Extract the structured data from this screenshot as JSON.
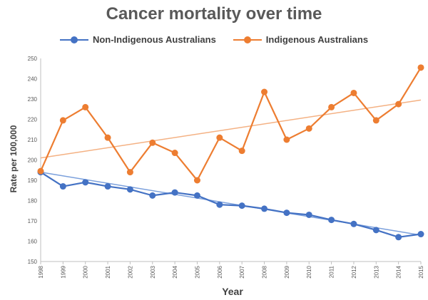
{
  "chart_data": {
    "type": "line",
    "title": "Cancer mortality over time",
    "xlabel": "Year",
    "ylabel": "Rate per 100,000",
    "x": [
      "1998",
      "1999",
      "2000",
      "2001",
      "2002",
      "2003",
      "2004",
      "2005",
      "2006",
      "2007",
      "2008",
      "2009",
      "2010",
      "2011",
      "2012",
      "2013",
      "2014",
      "2015"
    ],
    "ylim": [
      150,
      250
    ],
    "yticks": [
      "150",
      "160",
      "170",
      "180",
      "190",
      "200",
      "210",
      "220",
      "230",
      "240",
      "250"
    ],
    "grid": false,
    "legend_position": "top",
    "series": [
      {
        "name": "Non-Indigenous Australians",
        "color": "#4472C4",
        "trend_color": "#7BA0DC",
        "values": [
          194,
          187,
          189,
          187,
          185.5,
          182.5,
          184,
          182.5,
          178,
          177.5,
          176,
          174,
          173,
          170.5,
          168.5,
          165.5,
          162,
          163.5
        ],
        "trendline": [
          194,
          163
        ]
      },
      {
        "name": "Indigenous Australians",
        "color": "#ED7D31",
        "trend_color": "#F4B183",
        "values": [
          194.5,
          219.5,
          226,
          211,
          194,
          208.5,
          203.5,
          190,
          211,
          204.5,
          233.5,
          210,
          215.5,
          226,
          233,
          219.5,
          227.5,
          245.5
        ],
        "trendline": [
          201,
          229.5
        ]
      }
    ]
  }
}
